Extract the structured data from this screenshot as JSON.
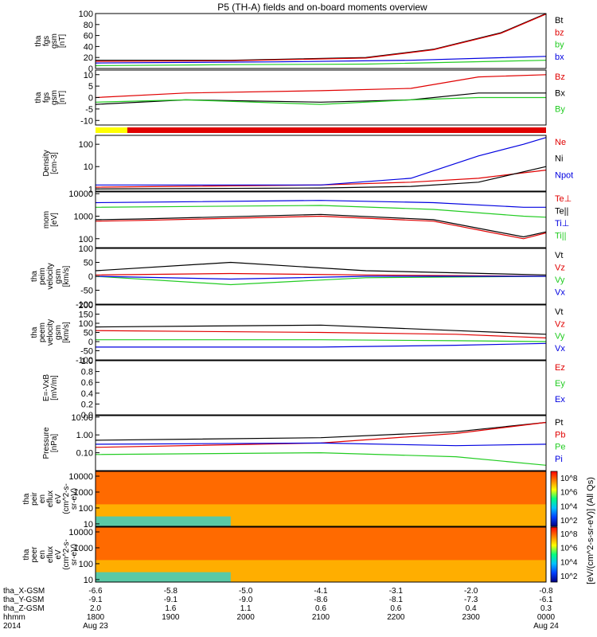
{
  "title": "P5 (TH-A) fields and on-board moments overview",
  "colors": {
    "black": "#000000",
    "red": "#e00000",
    "green": "#22cc22",
    "blue": "#0000e0",
    "yellow": "#ffff00"
  },
  "chart_data": [
    {
      "type": "line",
      "ylabel": [
        "tha",
        "fgs",
        "gsm",
        "[nT]"
      ],
      "ylim": [
        0,
        100
      ],
      "ticks": [
        "0",
        "20",
        "40",
        "60",
        "80",
        "100"
      ],
      "tick_values": [
        0,
        20,
        40,
        60,
        80,
        100
      ],
      "log": false,
      "series": [
        {
          "name": "Bt",
          "color": "black",
          "x": [
            0,
            0.3,
            0.6,
            0.75,
            0.9,
            1.0
          ],
          "y": [
            15,
            15,
            20,
            35,
            65,
            100
          ]
        },
        {
          "name": "bz",
          "color": "red",
          "x": [
            0,
            0.3,
            0.6,
            0.75,
            0.9,
            1.0
          ],
          "y": [
            13,
            14,
            19,
            34,
            64,
            99
          ]
        },
        {
          "name": "by",
          "color": "green",
          "x": [
            0,
            0.3,
            0.6,
            1.0
          ],
          "y": [
            5,
            7,
            8,
            15
          ]
        },
        {
          "name": "bx",
          "color": "blue",
          "x": [
            0,
            0.4,
            0.7,
            1.0
          ],
          "y": [
            10,
            12,
            15,
            22
          ]
        }
      ]
    },
    {
      "type": "line",
      "ylabel": [
        "tha",
        "fgs",
        "gsm",
        "[nT]"
      ],
      "ylim": [
        -12,
        12
      ],
      "ticks": [
        "-10",
        "-5",
        "0",
        "5",
        "10"
      ],
      "tick_values": [
        -10,
        -5,
        0,
        5,
        10
      ],
      "log": false,
      "series": [
        {
          "name": "Bz",
          "color": "red",
          "x": [
            0,
            0.2,
            0.5,
            0.7,
            0.85,
            1.0
          ],
          "y": [
            0,
            2,
            3,
            4,
            9,
            10
          ]
        },
        {
          "name": "Bx",
          "color": "black",
          "x": [
            0,
            0.2,
            0.5,
            0.7,
            0.85,
            1.0
          ],
          "y": [
            -3,
            -1,
            -2,
            -1,
            2,
            2
          ]
        },
        {
          "name": "By",
          "color": "green",
          "x": [
            0,
            0.2,
            0.5,
            0.7,
            0.85,
            1.0
          ],
          "y": [
            -2,
            -1,
            -3,
            -1,
            0,
            0
          ]
        }
      ]
    },
    {
      "type": "line",
      "ylabel": [
        "Density",
        "[cm-3]"
      ],
      "ylim": [
        0.8,
        250
      ],
      "ticks": [
        "1",
        "10",
        "100"
      ],
      "tick_values": [
        1,
        10,
        100
      ],
      "log": true,
      "series": [
        {
          "name": "Ne",
          "color": "red",
          "x": [
            0,
            0.5,
            0.7,
            0.85,
            1.0
          ],
          "y": [
            1.2,
            1.5,
            2,
            3,
            7
          ]
        },
        {
          "name": "Ni",
          "color": "black",
          "x": [
            0,
            0.5,
            0.7,
            0.85,
            1.0
          ],
          "y": [
            1.0,
            1.1,
            1.3,
            2,
            10
          ]
        },
        {
          "name": "Npot",
          "color": "blue",
          "x": [
            0,
            0.5,
            0.7,
            0.85,
            0.95,
            1.0
          ],
          "y": [
            1.5,
            1.5,
            3,
            30,
            100,
            200
          ]
        }
      ]
    },
    {
      "type": "line",
      "ylabel": [
        "mom",
        "[eV]"
      ],
      "ylim": [
        40,
        12000
      ],
      "ticks": [
        "100",
        "1000",
        "10000"
      ],
      "tick_values": [
        100,
        1000,
        10000
      ],
      "log": true,
      "series": [
        {
          "name": "Te⊥",
          "color": "red",
          "x": [
            0,
            0.1,
            0.5,
            0.75,
            0.95,
            1.0
          ],
          "y": [
            600,
            650,
            1000,
            600,
            100,
            180
          ]
        },
        {
          "name": "Te||",
          "color": "black",
          "x": [
            0,
            0.1,
            0.5,
            0.75,
            0.95,
            1.0
          ],
          "y": [
            700,
            750,
            1200,
            700,
            120,
            200
          ]
        },
        {
          "name": "Ti⊥",
          "color": "blue",
          "x": [
            0,
            0.5,
            0.75,
            0.95,
            1.0
          ],
          "y": [
            4000,
            5000,
            4000,
            2500,
            2500
          ]
        },
        {
          "name": "Ti||",
          "color": "green",
          "x": [
            0,
            0.5,
            0.75,
            0.95,
            1.0
          ],
          "y": [
            2500,
            3000,
            2000,
            1000,
            900
          ]
        }
      ]
    },
    {
      "type": "line",
      "ylabel": [
        "tha",
        "peim",
        "velocity",
        "gsm",
        "[km/s]"
      ],
      "ylim": [
        -100,
        100
      ],
      "ticks": [
        "-100",
        "-50",
        "0",
        "50",
        "100"
      ],
      "tick_values": [
        -100,
        -50,
        0,
        50,
        100
      ],
      "log": false,
      "series": [
        {
          "name": "Vt",
          "color": "black",
          "x": [
            0,
            0.3,
            0.6,
            1.0
          ],
          "y": [
            20,
            50,
            20,
            5
          ]
        },
        {
          "name": "Vz",
          "color": "red",
          "x": [
            0,
            0.3,
            0.6,
            1.0
          ],
          "y": [
            5,
            10,
            5,
            0
          ]
        },
        {
          "name": "Vy",
          "color": "green",
          "x": [
            0,
            0.3,
            0.6,
            1.0
          ],
          "y": [
            0,
            -30,
            -5,
            0
          ]
        },
        {
          "name": "Vx",
          "color": "blue",
          "x": [
            0,
            0.3,
            0.6,
            1.0
          ],
          "y": [
            0,
            -10,
            0,
            0
          ]
        }
      ]
    },
    {
      "type": "line",
      "ylabel": [
        "tha",
        "peem",
        "velocity",
        "gsm",
        "[km/s]"
      ],
      "ylim": [
        -100,
        200
      ],
      "ticks": [
        "-100",
        "-50",
        "0",
        "50",
        "100",
        "150",
        "200"
      ],
      "tick_values": [
        -100,
        -50,
        0,
        50,
        100,
        150,
        200
      ],
      "log": false,
      "series": [
        {
          "name": "Vt",
          "color": "black",
          "x": [
            0,
            0.5,
            0.8,
            1.0
          ],
          "y": [
            80,
            90,
            60,
            40
          ]
        },
        {
          "name": "Vz",
          "color": "red",
          "x": [
            0,
            0.5,
            0.8,
            1.0
          ],
          "y": [
            60,
            50,
            40,
            20
          ]
        },
        {
          "name": "Vy",
          "color": "green",
          "x": [
            0,
            0.5,
            0.8,
            1.0
          ],
          "y": [
            10,
            10,
            5,
            0
          ]
        },
        {
          "name": "Vx",
          "color": "blue",
          "x": [
            0,
            0.5,
            0.8,
            1.0
          ],
          "y": [
            -30,
            -30,
            -20,
            -10
          ]
        }
      ]
    },
    {
      "type": "line",
      "ylabel": [
        "E=-VxB",
        "[mV/m]"
      ],
      "ylim": [
        0,
        1
      ],
      "ticks": [
        "0.0",
        "0.2",
        "0.4",
        "0.6",
        "0.8",
        "1.0"
      ],
      "tick_values": [
        0,
        0.2,
        0.4,
        0.6,
        0.8,
        1.0
      ],
      "log": false,
      "series": [
        {
          "name": "Ez",
          "color": "red",
          "x": [],
          "y": []
        },
        {
          "name": "Ey",
          "color": "green",
          "x": [],
          "y": []
        },
        {
          "name": "Ex",
          "color": "blue",
          "x": [],
          "y": []
        }
      ]
    },
    {
      "type": "line",
      "ylabel": [
        "Pressure",
        "[nPa]"
      ],
      "ylim": [
        0.01,
        12
      ],
      "ticks": [
        "0.10",
        "1.00",
        "10.00"
      ],
      "tick_values": [
        0.1,
        1,
        10
      ],
      "log": true,
      "series": [
        {
          "name": "Pt",
          "color": "black",
          "x": [
            0,
            0.5,
            0.8,
            1.0
          ],
          "y": [
            0.5,
            0.7,
            1.5,
            5
          ]
        },
        {
          "name": "Pb",
          "color": "red",
          "x": [
            0,
            0.5,
            0.8,
            1.0
          ],
          "y": [
            0.2,
            0.35,
            1.2,
            5
          ]
        },
        {
          "name": "Pe",
          "color": "green",
          "x": [
            0,
            0.5,
            0.8,
            1.0
          ],
          "y": [
            0.08,
            0.1,
            0.06,
            0.02
          ]
        },
        {
          "name": "Pi",
          "color": "blue",
          "x": [
            0,
            0.5,
            0.8,
            1.0
          ],
          "y": [
            0.3,
            0.35,
            0.25,
            0.3
          ]
        }
      ]
    },
    {
      "type": "heatmap",
      "ylabel": [
        "tha",
        "peir",
        "en",
        "eflux",
        "eV",
        "(cm^2-s-",
        "sr-eV)"
      ],
      "ylim": [
        7,
        20000
      ],
      "ticks": [
        "10",
        "100",
        "1000",
        "10000"
      ],
      "tick_values": [
        10,
        100,
        1000,
        10000
      ],
      "log": true,
      "colorbar_ticks": [
        "10^2",
        "10^4",
        "10^6",
        "10^8"
      ],
      "colorbar_label": "[eV/(cm^2-s-sr-eV)] (All Qs)"
    },
    {
      "type": "heatmap",
      "ylabel": [
        "tha",
        "peer",
        "en",
        "eflux",
        "eV",
        "(cm^2-s-",
        "sr-eV)"
      ],
      "ylim": [
        7,
        20000
      ],
      "ticks": [
        "10",
        "100",
        "1000",
        "10000"
      ],
      "tick_values": [
        10,
        100,
        1000,
        10000
      ],
      "log": true,
      "colorbar_ticks": [
        "10^2",
        "10^4",
        "10^6",
        "10^8"
      ]
    }
  ],
  "xaxis": {
    "rows": [
      {
        "label": "tha_X-GSM",
        "values": [
          "-6.6",
          "-5.8",
          "-5.0",
          "-4.1",
          "-3.1",
          "-2.0",
          "-0.8"
        ]
      },
      {
        "label": "tha_Y-GSM",
        "values": [
          "-9.1",
          "-9.1",
          "-9.0",
          "-8.6",
          "-8.1",
          "-7.3",
          "-6.1"
        ]
      },
      {
        "label": "tha_Z-GSM",
        "values": [
          "2.0",
          "1.6",
          "1.1",
          "0.6",
          "0.6",
          "0.4",
          "0.3"
        ]
      },
      {
        "label": "hhmm",
        "values": [
          "1800",
          "1900",
          "2000",
          "2100",
          "2200",
          "2300",
          "0000"
        ]
      },
      {
        "label": "2014",
        "values": [
          "Aug 23",
          "",
          "",
          "",
          "",
          "",
          "Aug 24"
        ]
      }
    ]
  }
}
